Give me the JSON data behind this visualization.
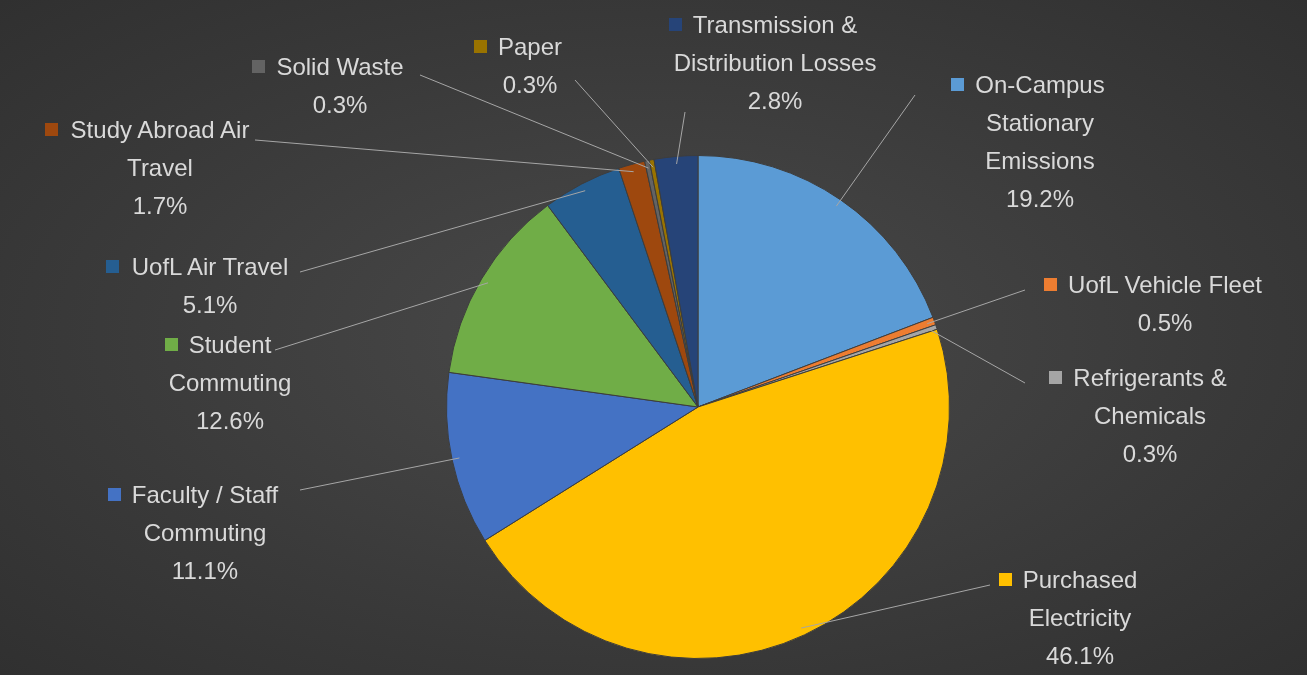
{
  "chart_data": {
    "type": "pie",
    "categories": [
      "On-Campus Stationary Emissions",
      "UofL Vehicle Fleet",
      "Refrigerants & Chemicals",
      "Purchased Electricity",
      "Faculty / Staff Commuting",
      "Student Commuting",
      "UofL Air Travel",
      "Study Abroad Air Travel",
      "Solid Waste",
      "Paper",
      "Transmission & Distribution Losses"
    ],
    "values": [
      19.2,
      0.5,
      0.3,
      46.1,
      11.1,
      12.6,
      5.1,
      1.7,
      0.3,
      0.3,
      2.8
    ],
    "value_labels": [
      "19.2%",
      "0.5%",
      "0.3%",
      "46.1%",
      "11.1%",
      "12.6%",
      "5.1%",
      "1.7%",
      "0.3%",
      "0.3%",
      "2.8%"
    ],
    "colors": [
      "#5b9bd5",
      "#ed7d31",
      "#a5a5a5",
      "#ffc000",
      "#4472c4",
      "#70ad47",
      "#255e91",
      "#9e480e",
      "#636363",
      "#997300",
      "#264478"
    ],
    "legend": true
  }
}
